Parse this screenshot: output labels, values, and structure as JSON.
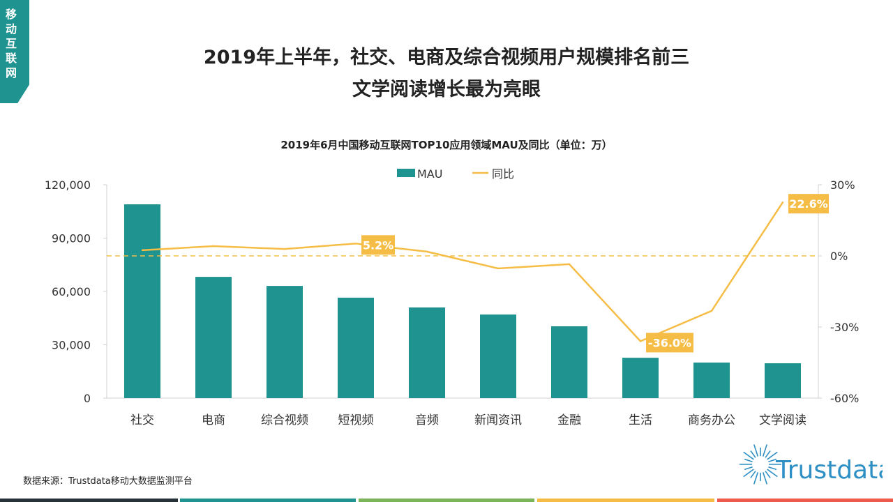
{
  "tag": "移动互联网",
  "headline": [
    "2019年上半年，社交、电商及综合视频用户规模排名前三",
    "文学阅读增长最为亮眼"
  ],
  "source": "数据来源：Trustdata移动大数据监测平台",
  "logo_text": "Trustdata",
  "colors": {
    "bar": "#1f9390",
    "line": "#f5bd45",
    "tag": "#1f9390",
    "strip": [
      "#263238",
      "#1f9390",
      "#7cb45a",
      "#f5bd45",
      "#ee5a4c"
    ]
  },
  "chart_data": {
    "type": "bar+line",
    "title": "2019年6月中国移动互联网TOP10应用领域MAU及同比（单位：万）",
    "categories": [
      "社交",
      "电商",
      "综合视频",
      "短视频",
      "音频",
      "新闻资讯",
      "金融",
      "生活",
      "商务办公",
      "文学阅读"
    ],
    "series": [
      {
        "name": "MAU",
        "type": "bar",
        "axis": "left",
        "values": [
          109000,
          68200,
          63100,
          56500,
          51000,
          47000,
          40400,
          22700,
          20000,
          19600
        ]
      },
      {
        "name": "同比",
        "type": "line",
        "axis": "right",
        "values": [
          2.4,
          4.1,
          2.9,
          5.2,
          1.8,
          -5.3,
          -3.5,
          -36.0,
          -23.2,
          22.6
        ]
      }
    ],
    "data_labels": [
      {
        "category": "短视频",
        "text": "5.2%"
      },
      {
        "category": "生活",
        "text": "-36.0%"
      },
      {
        "category": "文学阅读",
        "text": "22.6%"
      }
    ],
    "left_axis": {
      "range": [
        0,
        120000
      ],
      "ticks": [
        "0",
        "30,000",
        "60,000",
        "90,000",
        "120,000"
      ]
    },
    "right_axis": {
      "range": [
        -60,
        30
      ],
      "ticks": [
        "-60%",
        "-30%",
        "0%",
        "30%"
      ]
    },
    "reference_line": {
      "value": 0,
      "style": "dashed"
    },
    "legend": {
      "placement": "top",
      "entries": [
        "MAU",
        "同比"
      ]
    },
    "grid": false
  }
}
